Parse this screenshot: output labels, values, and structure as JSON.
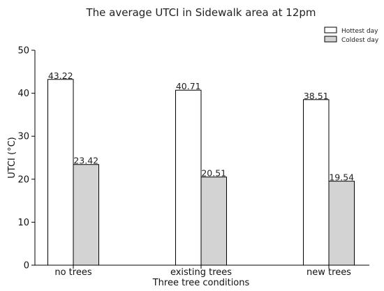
{
  "chart_data": {
    "type": "bar",
    "title": "The average UTCI in Sidewalk area at 12pm",
    "xlabel": "Three tree conditions",
    "ylabel": "UTCI (°C)",
    "categories": [
      "no trees",
      "existing trees",
      "new trees"
    ],
    "series": [
      {
        "name": "Hottest day",
        "values": [
          43.22,
          40.71,
          38.51
        ],
        "color": "#ffffff"
      },
      {
        "name": "Coldest day",
        "values": [
          23.42,
          20.51,
          19.54
        ],
        "color": "#d3d3d3"
      }
    ],
    "data_labels": [
      [
        "43.22",
        "40.71",
        "38.51"
      ],
      [
        "23.42",
        "20.51",
        "19.54"
      ]
    ],
    "ylim": [
      0,
      50
    ],
    "yticks": [
      0,
      10,
      20,
      30,
      40,
      50
    ],
    "grid": false,
    "legend_position": "top-right",
    "edge_color": "#000000"
  }
}
